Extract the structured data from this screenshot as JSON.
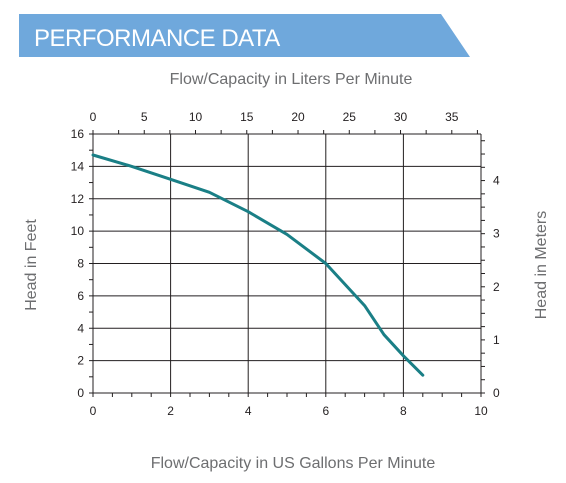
{
  "header": {
    "title": "PERFORMANCE DATA",
    "banner_color": "#6fa8dc"
  },
  "chart_data": {
    "type": "line",
    "curve_color": "#1a7f86",
    "xlabel": "Flow/Capacity in US Gallons Per Minute",
    "x2label": "Flow/Capacity in Liters Per Minute",
    "ylabel": "Head in Feet",
    "y2label": "Head in Meters",
    "xlim": [
      0,
      10
    ],
    "ylim": [
      0,
      16
    ],
    "x2lim": [
      0,
      37.85
    ],
    "y2lim": [
      0,
      4.877
    ],
    "grid": true,
    "x_ticks": [
      "0",
      "2",
      "4",
      "6",
      "8",
      "10"
    ],
    "y_ticks": [
      "0",
      "2",
      "4",
      "6",
      "8",
      "10",
      "12",
      "14",
      "16"
    ],
    "x2_ticks": [
      "0",
      "5",
      "10",
      "15",
      "20",
      "25",
      "30",
      "35"
    ],
    "y2_ticks": [
      "0",
      "1",
      "2",
      "3",
      "4"
    ],
    "series": [
      {
        "x": [
          0,
          1,
          2,
          3,
          4,
          5,
          6,
          7,
          7.5,
          8,
          8.5
        ],
        "y": [
          14.7,
          14.0,
          13.2,
          12.4,
          11.2,
          9.8,
          8.0,
          5.4,
          3.6,
          2.3,
          1.1
        ]
      }
    ]
  }
}
